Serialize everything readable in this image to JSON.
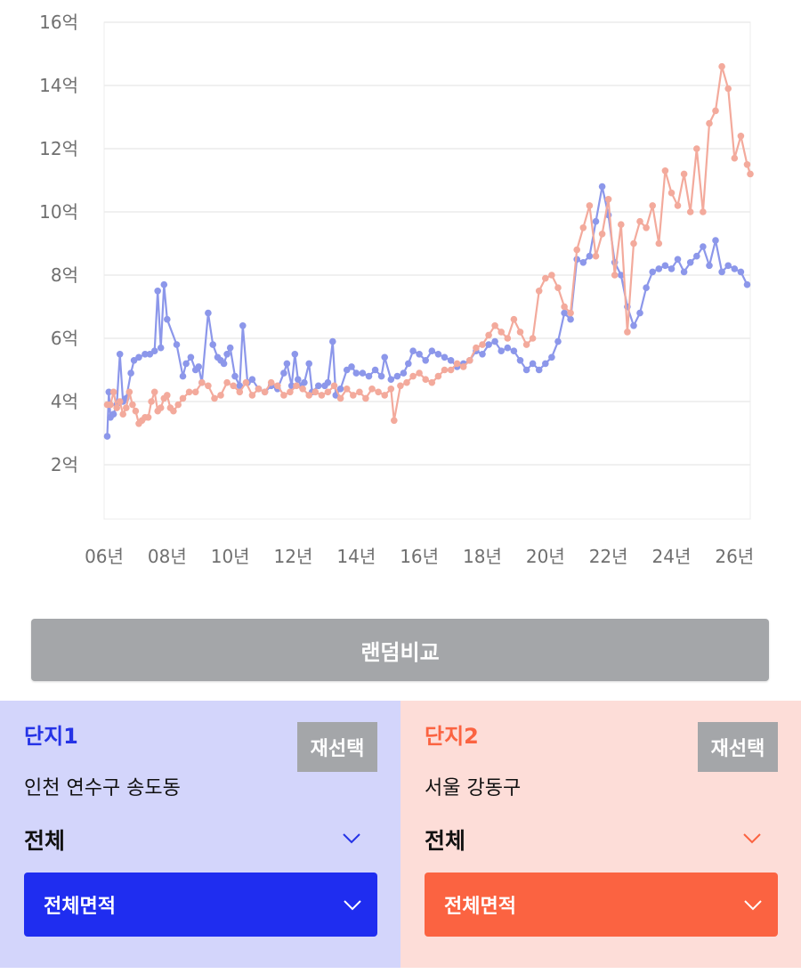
{
  "chart_data": {
    "type": "line",
    "title": "",
    "xlabel": "",
    "ylabel": "",
    "ylim": [
      0,
      16
    ],
    "xlim": [
      2006,
      2026.5
    ],
    "y_ticks": [
      {
        "value": 2,
        "label": "2억"
      },
      {
        "value": 4,
        "label": "4억"
      },
      {
        "value": 6,
        "label": "6억"
      },
      {
        "value": 8,
        "label": "8억"
      },
      {
        "value": 10,
        "label": "10억"
      },
      {
        "value": 12,
        "label": "12억"
      },
      {
        "value": 14,
        "label": "14억"
      },
      {
        "value": 16,
        "label": "16억"
      }
    ],
    "x_ticks": [
      {
        "value": 2006,
        "label": "06년"
      },
      {
        "value": 2008,
        "label": "08년"
      },
      {
        "value": 2010,
        "label": "10년"
      },
      {
        "value": 2012,
        "label": "12년"
      },
      {
        "value": 2014,
        "label": "14년"
      },
      {
        "value": 2016,
        "label": "16년"
      },
      {
        "value": 2018,
        "label": "18년"
      },
      {
        "value": 2020,
        "label": "20년"
      },
      {
        "value": 2022,
        "label": "22년"
      },
      {
        "value": 2024,
        "label": "24년"
      },
      {
        "value": 2026,
        "label": "26년"
      }
    ],
    "grid": true,
    "series": [
      {
        "color": "#8c97ea",
        "points": [
          [
            2006.1,
            2.9
          ],
          [
            2006.15,
            4.3
          ],
          [
            2006.2,
            3.5
          ],
          [
            2006.3,
            3.6
          ],
          [
            2006.4,
            3.9
          ],
          [
            2006.5,
            5.5
          ],
          [
            2006.6,
            4.0
          ],
          [
            2006.7,
            4.1
          ],
          [
            2006.85,
            4.9
          ],
          [
            2006.95,
            5.3
          ],
          [
            2007.1,
            5.4
          ],
          [
            2007.3,
            5.5
          ],
          [
            2007.45,
            5.5
          ],
          [
            2007.6,
            5.6
          ],
          [
            2007.7,
            7.5
          ],
          [
            2007.8,
            5.7
          ],
          [
            2007.9,
            7.7
          ],
          [
            2008.0,
            6.6
          ],
          [
            2008.3,
            5.8
          ],
          [
            2008.5,
            4.8
          ],
          [
            2008.6,
            5.2
          ],
          [
            2008.75,
            5.4
          ],
          [
            2008.9,
            5.0
          ],
          [
            2009.0,
            5.1
          ],
          [
            2009.1,
            4.6
          ],
          [
            2009.3,
            6.8
          ],
          [
            2009.45,
            5.8
          ],
          [
            2009.6,
            5.4
          ],
          [
            2009.7,
            5.3
          ],
          [
            2009.8,
            5.2
          ],
          [
            2009.9,
            5.5
          ],
          [
            2010.0,
            5.7
          ],
          [
            2010.15,
            4.8
          ],
          [
            2010.3,
            4.5
          ],
          [
            2010.4,
            6.4
          ],
          [
            2010.55,
            4.6
          ],
          [
            2010.7,
            4.7
          ],
          [
            2010.9,
            4.4
          ],
          [
            2011.1,
            4.3
          ],
          [
            2011.3,
            4.5
          ],
          [
            2011.5,
            4.4
          ],
          [
            2011.7,
            4.9
          ],
          [
            2011.8,
            5.2
          ],
          [
            2011.95,
            4.5
          ],
          [
            2012.05,
            5.5
          ],
          [
            2012.15,
            4.7
          ],
          [
            2012.25,
            4.5
          ],
          [
            2012.35,
            4.6
          ],
          [
            2012.5,
            5.2
          ],
          [
            2012.6,
            4.3
          ],
          [
            2012.8,
            4.5
          ],
          [
            2013.0,
            4.5
          ],
          [
            2013.1,
            4.6
          ],
          [
            2013.25,
            5.9
          ],
          [
            2013.35,
            4.2
          ],
          [
            2013.5,
            4.4
          ],
          [
            2013.7,
            5.0
          ],
          [
            2013.85,
            5.1
          ],
          [
            2014.0,
            4.9
          ],
          [
            2014.2,
            4.9
          ],
          [
            2014.4,
            4.8
          ],
          [
            2014.6,
            5.0
          ],
          [
            2014.8,
            4.8
          ],
          [
            2014.9,
            5.4
          ],
          [
            2015.1,
            4.7
          ],
          [
            2015.3,
            4.8
          ],
          [
            2015.5,
            4.9
          ],
          [
            2015.65,
            5.2
          ],
          [
            2015.8,
            5.6
          ],
          [
            2016.0,
            5.5
          ],
          [
            2016.2,
            5.3
          ],
          [
            2016.4,
            5.6
          ],
          [
            2016.6,
            5.5
          ],
          [
            2016.8,
            5.4
          ],
          [
            2017.0,
            5.3
          ],
          [
            2017.2,
            5.1
          ],
          [
            2017.4,
            5.2
          ],
          [
            2017.6,
            5.3
          ],
          [
            2017.8,
            5.6
          ],
          [
            2018.0,
            5.5
          ],
          [
            2018.2,
            5.8
          ],
          [
            2018.4,
            5.9
          ],
          [
            2018.6,
            5.6
          ],
          [
            2018.8,
            5.7
          ],
          [
            2019.0,
            5.6
          ],
          [
            2019.2,
            5.3
          ],
          [
            2019.4,
            5.0
          ],
          [
            2019.6,
            5.2
          ],
          [
            2019.8,
            5.0
          ],
          [
            2020.0,
            5.2
          ],
          [
            2020.2,
            5.4
          ],
          [
            2020.4,
            5.9
          ],
          [
            2020.6,
            6.8
          ],
          [
            2020.8,
            6.6
          ],
          [
            2021.0,
            8.5
          ],
          [
            2021.2,
            8.4
          ],
          [
            2021.4,
            8.6
          ],
          [
            2021.6,
            9.7
          ],
          [
            2021.8,
            10.8
          ],
          [
            2022.0,
            9.9
          ],
          [
            2022.2,
            8.4
          ],
          [
            2022.4,
            8.0
          ],
          [
            2022.6,
            7.0
          ],
          [
            2022.8,
            6.4
          ],
          [
            2023.0,
            6.8
          ],
          [
            2023.2,
            7.6
          ],
          [
            2023.4,
            8.1
          ],
          [
            2023.6,
            8.2
          ],
          [
            2023.8,
            8.3
          ],
          [
            2024.0,
            8.2
          ],
          [
            2024.2,
            8.5
          ],
          [
            2024.4,
            8.1
          ],
          [
            2024.6,
            8.4
          ],
          [
            2024.8,
            8.6
          ],
          [
            2025.0,
            8.9
          ],
          [
            2025.2,
            8.3
          ],
          [
            2025.4,
            9.1
          ],
          [
            2025.6,
            8.1
          ],
          [
            2025.8,
            8.3
          ],
          [
            2026.0,
            8.2
          ],
          [
            2026.2,
            8.1
          ],
          [
            2026.4,
            7.7
          ]
        ]
      },
      {
        "color": "#f3aa9c",
        "points": [
          [
            2006.1,
            3.9
          ],
          [
            2006.2,
            3.9
          ],
          [
            2006.3,
            4.3
          ],
          [
            2006.4,
            3.8
          ],
          [
            2006.5,
            4.0
          ],
          [
            2006.6,
            3.6
          ],
          [
            2006.7,
            3.8
          ],
          [
            2006.8,
            4.3
          ],
          [
            2006.9,
            3.9
          ],
          [
            2007.0,
            3.7
          ],
          [
            2007.1,
            3.3
          ],
          [
            2007.2,
            3.4
          ],
          [
            2007.3,
            3.5
          ],
          [
            2007.4,
            3.5
          ],
          [
            2007.5,
            4.0
          ],
          [
            2007.6,
            4.3
          ],
          [
            2007.7,
            3.7
          ],
          [
            2007.8,
            3.8
          ],
          [
            2007.9,
            4.1
          ],
          [
            2008.0,
            4.2
          ],
          [
            2008.1,
            3.8
          ],
          [
            2008.2,
            3.7
          ],
          [
            2008.35,
            3.9
          ],
          [
            2008.5,
            4.1
          ],
          [
            2008.7,
            4.3
          ],
          [
            2008.9,
            4.3
          ],
          [
            2009.1,
            4.6
          ],
          [
            2009.3,
            4.5
          ],
          [
            2009.5,
            4.1
          ],
          [
            2009.7,
            4.2
          ],
          [
            2009.9,
            4.6
          ],
          [
            2010.1,
            4.5
          ],
          [
            2010.3,
            4.3
          ],
          [
            2010.5,
            4.6
          ],
          [
            2010.7,
            4.2
          ],
          [
            2010.9,
            4.4
          ],
          [
            2011.1,
            4.3
          ],
          [
            2011.3,
            4.6
          ],
          [
            2011.5,
            4.5
          ],
          [
            2011.7,
            4.2
          ],
          [
            2011.9,
            4.3
          ],
          [
            2012.1,
            4.5
          ],
          [
            2012.3,
            4.4
          ],
          [
            2012.5,
            4.2
          ],
          [
            2012.7,
            4.3
          ],
          [
            2012.9,
            4.2
          ],
          [
            2013.1,
            4.3
          ],
          [
            2013.3,
            4.5
          ],
          [
            2013.5,
            4.1
          ],
          [
            2013.7,
            4.4
          ],
          [
            2013.9,
            4.2
          ],
          [
            2014.1,
            4.3
          ],
          [
            2014.3,
            4.1
          ],
          [
            2014.5,
            4.4
          ],
          [
            2014.7,
            4.3
          ],
          [
            2014.9,
            4.2
          ],
          [
            2015.1,
            4.4
          ],
          [
            2015.2,
            3.4
          ],
          [
            2015.4,
            4.5
          ],
          [
            2015.6,
            4.6
          ],
          [
            2015.8,
            4.8
          ],
          [
            2016.0,
            4.9
          ],
          [
            2016.2,
            4.7
          ],
          [
            2016.4,
            4.6
          ],
          [
            2016.6,
            4.8
          ],
          [
            2016.8,
            5.0
          ],
          [
            2017.0,
            5.0
          ],
          [
            2017.2,
            5.2
          ],
          [
            2017.4,
            5.1
          ],
          [
            2017.6,
            5.3
          ],
          [
            2017.8,
            5.7
          ],
          [
            2018.0,
            5.8
          ],
          [
            2018.2,
            6.1
          ],
          [
            2018.4,
            6.4
          ],
          [
            2018.6,
            6.2
          ],
          [
            2018.8,
            6.0
          ],
          [
            2019.0,
            6.6
          ],
          [
            2019.2,
            6.2
          ],
          [
            2019.4,
            5.8
          ],
          [
            2019.6,
            6.0
          ],
          [
            2019.8,
            7.5
          ],
          [
            2020.0,
            7.9
          ],
          [
            2020.2,
            8.0
          ],
          [
            2020.4,
            7.6
          ],
          [
            2020.6,
            7.0
          ],
          [
            2020.8,
            6.8
          ],
          [
            2021.0,
            8.8
          ],
          [
            2021.2,
            9.5
          ],
          [
            2021.4,
            10.2
          ],
          [
            2021.6,
            8.6
          ],
          [
            2021.8,
            9.3
          ],
          [
            2022.0,
            10.4
          ],
          [
            2022.2,
            8.0
          ],
          [
            2022.4,
            9.6
          ],
          [
            2022.6,
            6.2
          ],
          [
            2022.8,
            9.0
          ],
          [
            2023.0,
            9.7
          ],
          [
            2023.2,
            9.5
          ],
          [
            2023.4,
            10.2
          ],
          [
            2023.6,
            9.0
          ],
          [
            2023.8,
            11.3
          ],
          [
            2024.0,
            10.6
          ],
          [
            2024.2,
            10.2
          ],
          [
            2024.4,
            11.2
          ],
          [
            2024.6,
            10.0
          ],
          [
            2024.8,
            12.0
          ],
          [
            2025.0,
            10.0
          ],
          [
            2025.2,
            12.8
          ],
          [
            2025.4,
            13.2
          ],
          [
            2025.6,
            14.6
          ],
          [
            2025.8,
            13.9
          ],
          [
            2026.0,
            11.7
          ],
          [
            2026.2,
            12.4
          ],
          [
            2026.4,
            11.5
          ],
          [
            2026.5,
            11.2
          ]
        ]
      }
    ]
  },
  "random_compare": {
    "label": "랜덤비교"
  },
  "complexes": [
    {
      "title": "단지1",
      "reselect": "재선택",
      "region": "인천 연수구 송도동",
      "type": "전체",
      "area": "전체면적",
      "color": "#2533e6"
    },
    {
      "title": "단지2",
      "reselect": "재선택",
      "region": "서울 강동구",
      "type": "전체",
      "area": "전체면적",
      "color": "#fb6341"
    }
  ]
}
